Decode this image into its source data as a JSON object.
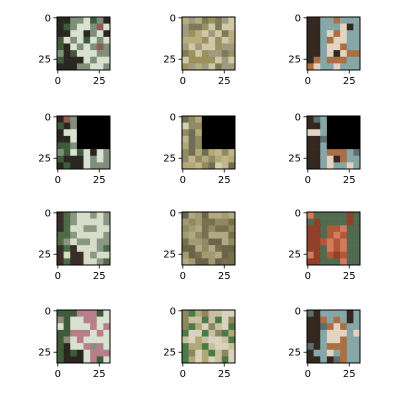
{
  "figure": {
    "rows": 4,
    "cols": 3,
    "background": "#ffffff",
    "axis_color": "#000000",
    "mask_color": "#000000"
  },
  "chart_data": {
    "type": "image_grid",
    "grid": [
      4,
      3
    ],
    "image_size": [
      32,
      32
    ],
    "axes": {
      "xlim": [
        -0.5,
        31.5
      ],
      "ylim": [
        31.5,
        -0.5
      ],
      "xticks": [
        0,
        25
      ],
      "yticks": [
        0,
        25
      ],
      "xtick_labels": [
        "0",
        "25"
      ],
      "ytick_labels": [
        "0",
        "25"
      ]
    },
    "row_variants": [
      "original",
      "masked",
      "reconstruction",
      "augmented"
    ],
    "mask": {
      "x": [
        12,
        31
      ],
      "y": [
        0,
        19
      ]
    },
    "panels": [
      {
        "row": 0,
        "col": 0,
        "subject": "grey animal on green-white background",
        "palette": [
          "#d9e2d0",
          "#7f8f7c",
          "#3e5b3a",
          "#8c5d55",
          "#2c2620"
        ]
      },
      {
        "row": 0,
        "col": 1,
        "subject": "muted textured olive scene",
        "palette": [
          "#b7ad7f",
          "#9a915f",
          "#cfc7a6",
          "#7e7a58",
          "#a09a80"
        ]
      },
      {
        "row": 0,
        "col": 2,
        "subject": "brown and white dog on blue background",
        "palette": [
          "#86a7a8",
          "#aa6f42",
          "#e2d3c2",
          "#332720",
          "#5b6f73"
        ]
      },
      {
        "row": 1,
        "col": 0,
        "subject": "grey animal, upper-right masked",
        "palette": [
          "#d9e2d0",
          "#7f8f7c",
          "#3e5b3a",
          "#8c5d55",
          "#2c2620"
        ]
      },
      {
        "row": 1,
        "col": 1,
        "subject": "olive scene, upper-right masked",
        "palette": [
          "#d5cfb3",
          "#b3a976",
          "#8f8c63",
          "#c2b58a",
          "#6f6d55"
        ]
      },
      {
        "row": 1,
        "col": 2,
        "subject": "dog, upper-right masked",
        "palette": [
          "#86a7a8",
          "#aa6f42",
          "#e2d3c2",
          "#332720",
          "#5b6f73"
        ]
      },
      {
        "row": 2,
        "col": 0,
        "subject": "grey animal reconstruction",
        "palette": [
          "#d6ddc9",
          "#8c9685",
          "#4d6b46",
          "#8a6d5f",
          "#3a2f28"
        ]
      },
      {
        "row": 2,
        "col": 1,
        "subject": "olive texture reconstruction",
        "palette": [
          "#8f8a63",
          "#a29a70",
          "#776f4d",
          "#b1a884",
          "#6a6549"
        ]
      },
      {
        "row": 2,
        "col": 2,
        "subject": "orange-red animal on green background",
        "palette": [
          "#506b50",
          "#b0583a",
          "#d57a5a",
          "#8f3f2a",
          "#3f4a3c"
        ]
      },
      {
        "row": 3,
        "col": 0,
        "subject": "grey animal with pink patch",
        "palette": [
          "#d9e2d0",
          "#b77f8a",
          "#3e5b3a",
          "#8f8a7c",
          "#2c2620"
        ]
      },
      {
        "row": 3,
        "col": 1,
        "subject": "olive scene with green leaves",
        "palette": [
          "#c8c1a0",
          "#4a7a48",
          "#b0a877",
          "#d9d3bd",
          "#8d865f"
        ]
      },
      {
        "row": 3,
        "col": 2,
        "subject": "brown and white dog on blue background",
        "palette": [
          "#86a7a8",
          "#aa6f42",
          "#e2d3c2",
          "#332720",
          "#5b6f73"
        ]
      }
    ]
  }
}
